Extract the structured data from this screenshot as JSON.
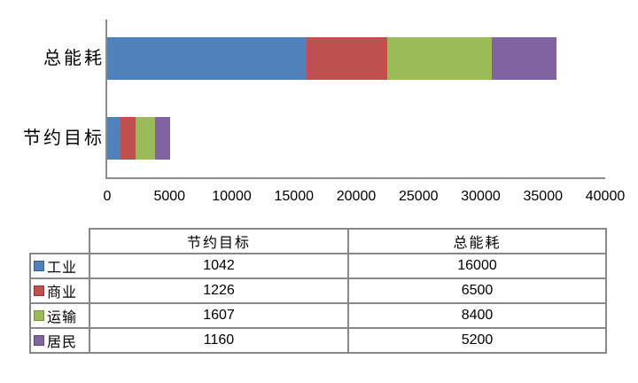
{
  "chart_data": {
    "type": "bar",
    "orientation": "horizontal",
    "stacked": true,
    "title": "",
    "categories": [
      "总能耗",
      "节约目标"
    ],
    "series": [
      {
        "name": "工业",
        "color": "#4F81BD",
        "border_color": "#385D8A",
        "values": [
          16000,
          1042
        ]
      },
      {
        "name": "商业",
        "color": "#C0504D",
        "border_color": "#943634",
        "values": [
          6500,
          1226
        ]
      },
      {
        "name": "运输",
        "color": "#9BBB59",
        "border_color": "#76923C",
        "values": [
          8400,
          1607
        ]
      },
      {
        "name": "居民",
        "color": "#8064A2",
        "border_color": "#5F497A",
        "values": [
          5200,
          1160
        ]
      }
    ],
    "xlim": [
      0,
      40000
    ],
    "x_ticks": [
      "0",
      "5000",
      "10000",
      "15000",
      "20000",
      "25000",
      "30000",
      "35000",
      "40000"
    ],
    "gridlines": false,
    "axis_color": "#8C8C8C",
    "legend_position": "table-left-column"
  },
  "table": {
    "columns": [
      "",
      "节约目标",
      "总能耗"
    ],
    "rows": [
      {
        "label": "工业",
        "swatch_color": "#4F81BD",
        "swatch_border": "#385D8A",
        "savings": "1042",
        "total": "16000"
      },
      {
        "label": "商业",
        "swatch_color": "#C0504D",
        "swatch_border": "#943634",
        "savings": "1226",
        "total": "6500"
      },
      {
        "label": "运输",
        "swatch_color": "#9BBB59",
        "swatch_border": "#76923C",
        "savings": "1607",
        "total": "8400"
      },
      {
        "label": "居民",
        "swatch_color": "#8064A2",
        "swatch_border": "#5F497A",
        "savings": "1160",
        "total": "5200"
      }
    ]
  }
}
